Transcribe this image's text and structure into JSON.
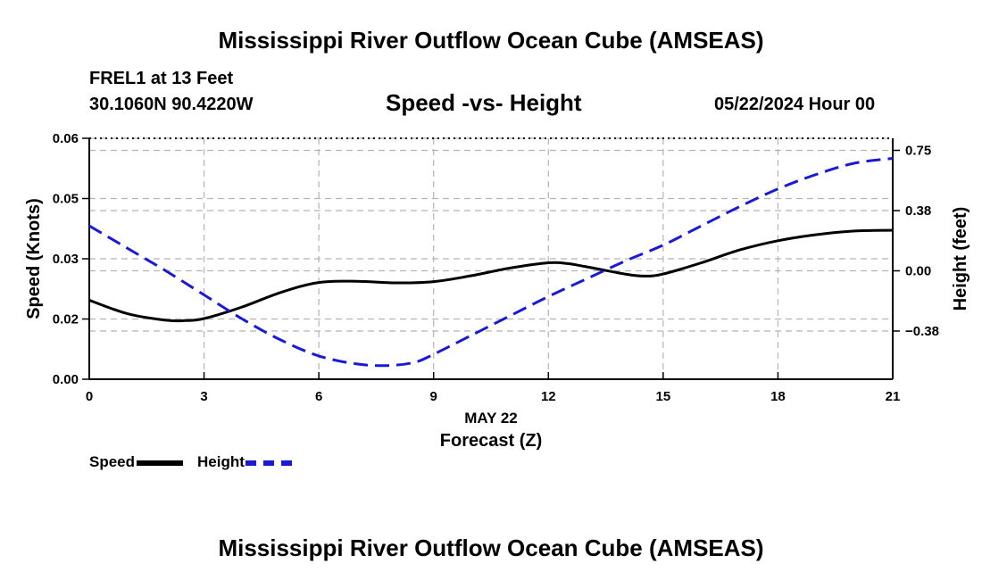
{
  "header": {
    "title": "Mississippi River Outflow Ocean Cube (AMSEAS)",
    "station": "FREL1 at 13 Feet",
    "coords": "30.1060N  90.4220W",
    "subtitle": "Speed -vs- Height",
    "datetime": "05/22/2024 Hour 00"
  },
  "footer": {
    "title": "Mississippi River Outflow Ocean Cube (AMSEAS)"
  },
  "legend": {
    "speed_label": "Speed",
    "height_label": "Height"
  },
  "chart_data": {
    "type": "line",
    "title": "Speed -vs- Height",
    "xlabel": "Forecast (Z)",
    "xlabel_date": "MAY 22",
    "ylabel": "Speed (Knots)",
    "y2label": "Height (feet)",
    "xlim": [
      0,
      21
    ],
    "ylim": [
      0,
      0.06
    ],
    "y2lim": [
      -0.675,
      0.825
    ],
    "x_ticks": [
      0,
      3,
      6,
      9,
      12,
      15,
      18,
      21
    ],
    "x_tick_labels": [
      "0",
      "3",
      "6",
      "9",
      "12",
      "15",
      "18",
      "21"
    ],
    "y_ticks": [
      0,
      0.015,
      0.03,
      0.045,
      0.06
    ],
    "y_tick_labels": [
      "0.00",
      "0.02",
      "0.03",
      "0.05",
      "0.06"
    ],
    "y2_ticks": [
      -0.375,
      0,
      0.375,
      0.75
    ],
    "y2_tick_labels": [
      "−0.38",
      "0.00",
      "0.38",
      "0.75"
    ],
    "grid": true,
    "colors": {
      "speed": "#000000",
      "height": "#1a1ad6",
      "grid": "#b4b4b4"
    },
    "series": [
      {
        "name": "Speed",
        "axis": "left",
        "style": "solid",
        "x": [
          0,
          1,
          2,
          2.5,
          3,
          4,
          5,
          6,
          7,
          8,
          9,
          10,
          11,
          12,
          12.5,
          13,
          14,
          14.5,
          15,
          16,
          17,
          18,
          19,
          20,
          21
        ],
        "values": [
          0.0197,
          0.0163,
          0.0147,
          0.0146,
          0.0151,
          0.018,
          0.0216,
          0.0241,
          0.0244,
          0.024,
          0.0243,
          0.0258,
          0.0277,
          0.029,
          0.0288,
          0.028,
          0.0262,
          0.0257,
          0.0262,
          0.029,
          0.0322,
          0.0345,
          0.036,
          0.0369,
          0.0371
        ]
      },
      {
        "name": "Height",
        "axis": "right",
        "style": "dashed",
        "x": [
          0,
          1,
          2,
          3,
          4,
          5,
          6,
          7,
          7.8,
          8.5,
          9,
          10,
          11,
          12,
          13,
          14,
          15,
          16,
          17,
          18,
          19,
          20,
          21
        ],
        "values": [
          0.28,
          0.14,
          0.0,
          -0.15,
          -0.3,
          -0.43,
          -0.53,
          -0.58,
          -0.59,
          -0.57,
          -0.52,
          -0.4,
          -0.28,
          -0.16,
          -0.05,
          0.06,
          0.16,
          0.28,
          0.4,
          0.51,
          0.6,
          0.67,
          0.7
        ]
      }
    ]
  }
}
